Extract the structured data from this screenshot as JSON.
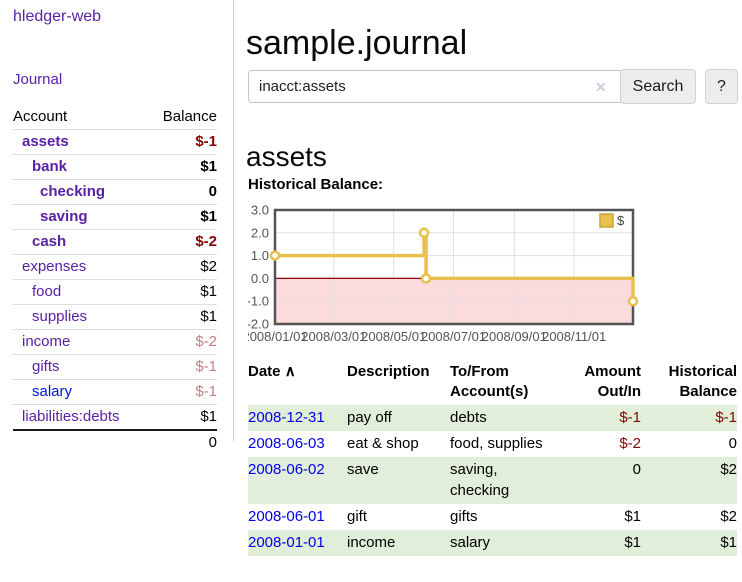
{
  "app": {
    "brand": "hledger-web"
  },
  "colors": {
    "link_purple": "#5b21a5",
    "link_blue": "#0014d2",
    "negative_red": "#8b0000",
    "faded_negative": "#c4807f",
    "stripe_green": "#e1eed9",
    "series_gold": "#e8c14d",
    "negative_region_pink": "#fbdbdb",
    "zero_line_red": "#8b0000",
    "chart_border_gray": "#545454"
  },
  "icons": {
    "sort_asc": "∧",
    "clear_search": "✕"
  },
  "sidebar": {
    "nav_journal": "Journal",
    "accounts": {
      "col_account": "Account",
      "col_balance": "Balance",
      "rows": [
        {
          "name": "assets",
          "depth": 0,
          "bold": true,
          "blue": false,
          "balance": "$-1",
          "balance_style": "neg-strong"
        },
        {
          "name": "bank",
          "depth": 1,
          "bold": true,
          "blue": false,
          "balance": "$1",
          "balance_style": "pos-strong"
        },
        {
          "name": "checking",
          "depth": 2,
          "bold": true,
          "blue": false,
          "balance": "0",
          "balance_style": "pos-strong"
        },
        {
          "name": "saving",
          "depth": 2,
          "bold": true,
          "blue": false,
          "balance": "$1",
          "balance_style": "pos-strong"
        },
        {
          "name": "cash",
          "depth": 1,
          "bold": true,
          "blue": false,
          "balance": "$-2",
          "balance_style": "neg-strong"
        },
        {
          "name": "expenses",
          "depth": 0,
          "bold": false,
          "blue": false,
          "balance": "$2",
          "balance_style": "pos"
        },
        {
          "name": "food",
          "depth": 1,
          "bold": false,
          "blue": false,
          "balance": "$1",
          "balance_style": "pos"
        },
        {
          "name": "supplies",
          "depth": 1,
          "bold": false,
          "blue": false,
          "balance": "$1",
          "balance_style": "pos"
        },
        {
          "name": "income",
          "depth": 0,
          "bold": false,
          "blue": false,
          "balance": "$-2",
          "balance_style": "neg-faded"
        },
        {
          "name": "gifts",
          "depth": 1,
          "bold": false,
          "blue": false,
          "balance": "$-1",
          "balance_style": "neg-faded"
        },
        {
          "name": "salary",
          "depth": 1,
          "bold": false,
          "blue": true,
          "balance": "$-1",
          "balance_style": "neg-faded"
        },
        {
          "name": "liabilities:debts",
          "depth": 0,
          "bold": false,
          "blue": false,
          "balance": "$1",
          "balance_style": "pos"
        }
      ],
      "total": "0"
    }
  },
  "main": {
    "title": "sample.journal",
    "search": {
      "value": "inacct:assets",
      "button": "Search",
      "help": "?"
    },
    "account_heading": "assets",
    "chart_title": "Historical Balance:"
  },
  "chart_data": {
    "type": "line",
    "step": true,
    "title": "Historical Balance:",
    "legend": {
      "label": "$",
      "position": "top-right"
    },
    "series": [
      {
        "name": "$",
        "color": "#e8c14d",
        "points": [
          {
            "x": "2008-01-01",
            "y": 1
          },
          {
            "x": "2008-06-01",
            "y": 2
          },
          {
            "x": "2008-06-03",
            "y": 0
          },
          {
            "x": "2008-12-31",
            "y": -1
          }
        ]
      }
    ],
    "xlim": [
      "2008-01-01",
      "2008-12-31"
    ],
    "ylim": [
      -2,
      3
    ],
    "x_ticks": [
      {
        "x": "2008-01-01",
        "label": "2008/01/01"
      },
      {
        "x": "2008-03-01",
        "label": "2008/03/01"
      },
      {
        "x": "2008-05-01",
        "label": "2008/05/01"
      },
      {
        "x": "2008-07-01",
        "label": "2008/07/01"
      },
      {
        "x": "2008-09-01",
        "label": "2008/09/01"
      },
      {
        "x": "2008-11-01",
        "label": "2008/11/01"
      }
    ],
    "y_ticks": [
      {
        "y": 3,
        "label": "3.0"
      },
      {
        "y": 2,
        "label": "2.0"
      },
      {
        "y": 1,
        "label": "1.0"
      },
      {
        "y": 0,
        "label": "0.0"
      },
      {
        "y": -1,
        "label": "-1.0"
      },
      {
        "y": -2,
        "label": "-2.0"
      }
    ],
    "grid": true,
    "zero_line_color": "#8b0000",
    "negative_fill": "#fbdbdb"
  },
  "register": {
    "headers": {
      "date": {
        "line1": "Date"
      },
      "description": {
        "line1": "Description"
      },
      "tofrom": {
        "line1": "To/From",
        "line2": "Account(s)"
      },
      "amount": {
        "line1": "Amount",
        "line2": "Out/In"
      },
      "balance": {
        "line1": "Historical",
        "line2": "Balance"
      }
    },
    "rows": [
      {
        "date": "2008-12-31",
        "description": "pay off",
        "accounts": "debts",
        "amount": "$-1",
        "amount_neg": true,
        "balance": "$-1",
        "balance_neg": true
      },
      {
        "date": "2008-06-03",
        "description": "eat & shop",
        "accounts": "food, supplies",
        "amount": "$-2",
        "amount_neg": true,
        "balance": "0",
        "balance_neg": false
      },
      {
        "date": "2008-06-02",
        "description": "save",
        "accounts": "saving, checking",
        "amount": "0",
        "amount_neg": false,
        "balance": "$2",
        "balance_neg": false
      },
      {
        "date": "2008-06-01",
        "description": "gift",
        "accounts": "gifts",
        "amount": "$1",
        "amount_neg": false,
        "balance": "$2",
        "balance_neg": false
      },
      {
        "date": "2008-01-01",
        "description": "income",
        "accounts": "salary",
        "amount": "$1",
        "amount_neg": false,
        "balance": "$1",
        "balance_neg": false
      }
    ]
  }
}
